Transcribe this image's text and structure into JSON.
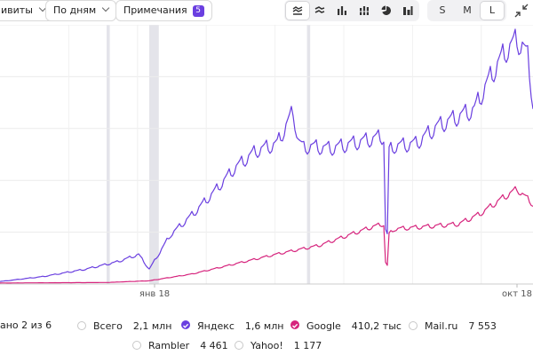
{
  "toolbar": {
    "dropdown1_label": "ивиты",
    "dropdown2_label": "По дням",
    "notes_label": "Примечания",
    "notes_count": "5",
    "chart_types": [
      "area-stacked-icon",
      "line-icon",
      "bar-icon",
      "stacked-bar-icon",
      "pie-icon",
      "column-icon"
    ],
    "sizes": [
      "S",
      "M",
      "L"
    ],
    "active_size": "L"
  },
  "legend": {
    "shown": "ано 2 из 6",
    "items": [
      {
        "name": "Всего",
        "value": "2,1 млн",
        "checked": false,
        "color": ""
      },
      {
        "name": "Яндекс",
        "value": "1,6 млн",
        "checked": true,
        "color": "#6a3fe0"
      },
      {
        "name": "Google",
        "value": "410,2 тыс",
        "checked": true,
        "color": "#d6247d"
      },
      {
        "name": "Mail.ru",
        "value": "7 553",
        "checked": false,
        "color": ""
      },
      {
        "name": "Rambler",
        "value": "4 461",
        "checked": false,
        "color": ""
      },
      {
        "name": "Yahoo!",
        "value": "1 177",
        "checked": false,
        "color": ""
      }
    ]
  },
  "chart_data": {
    "type": "line",
    "x_ticks": [
      "янв 18",
      "окт 18"
    ],
    "x_range": [
      0,
      100
    ],
    "ylim": [
      0,
      100
    ],
    "grid": true,
    "weekly_amplitude": [
      0.15,
      0.12,
      0.08,
      0.0,
      0.3,
      0.4,
      0.35
    ],
    "annotation_bands": [
      {
        "start": 20,
        "end": 20.6
      },
      {
        "start": 28,
        "end": 29.8
      },
      {
        "start": 57.6,
        "end": 58.2
      }
    ],
    "series": [
      {
        "name": "Яндекс",
        "color": "#6a3fe0",
        "x": [
          0,
          8,
          16,
          22,
          26,
          28,
          32,
          36,
          40,
          44,
          48,
          52,
          55,
          56,
          57,
          58,
          62,
          66,
          70,
          72,
          72.5,
          73,
          74,
          78,
          82,
          86,
          89,
          91,
          93,
          95,
          97,
          98,
          99,
          100
        ],
        "y": [
          1,
          3,
          6,
          9,
          12,
          6,
          20,
          28,
          37,
          47,
          54,
          57,
          70,
          58,
          55,
          56,
          55,
          57,
          59,
          60,
          3,
          54,
          56,
          57,
          64,
          68,
          71,
          80,
          88,
          95,
          99,
          97,
          92,
          74
        ],
        "weekly_amplitude": 0.25
      },
      {
        "name": "Google",
        "color": "#d6247d",
        "x": [
          0,
          20,
          28,
          36,
          44,
          52,
          60,
          66,
          70,
          72,
          72.5,
          73,
          74,
          80,
          86,
          90,
          94,
          97,
          100
        ],
        "y": [
          0.4,
          0.6,
          1.3,
          4,
          8,
          12,
          15.5,
          20,
          23,
          24,
          1,
          20,
          22,
          23,
          24,
          28,
          34,
          38,
          32
        ],
        "weekly_amplitude": 0.18
      }
    ]
  }
}
